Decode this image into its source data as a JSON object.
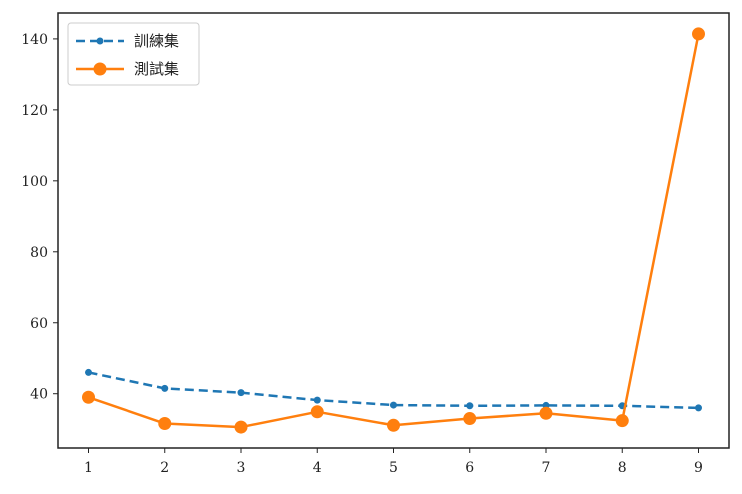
{
  "chart_data": {
    "type": "line",
    "title": "",
    "xlabel": "",
    "ylabel": "",
    "x": [
      1,
      2,
      3,
      4,
      5,
      6,
      7,
      8,
      9
    ],
    "xlim": [
      0.6,
      9.4
    ],
    "ylim": [
      24.7,
      147.3
    ],
    "xticks": [
      1,
      2,
      3,
      4,
      5,
      6,
      7,
      8,
      9
    ],
    "yticks": [
      40,
      60,
      80,
      100,
      120,
      140
    ],
    "grid": false,
    "legend_position": "top-left",
    "series": [
      {
        "name": "訓練集",
        "values": [
          46,
          41.5,
          40.3,
          38.2,
          36.8,
          36.6,
          36.7,
          36.6,
          36
        ],
        "color": "#1f77b4",
        "line_style": "dashed",
        "marker": "small-dot"
      },
      {
        "name": "測試集",
        "values": [
          39,
          31.6,
          30.6,
          34.9,
          31.1,
          33,
          34.5,
          32.4,
          141.4
        ],
        "color": "#ff7f0e",
        "line_style": "solid",
        "marker": "large-dot"
      }
    ]
  }
}
